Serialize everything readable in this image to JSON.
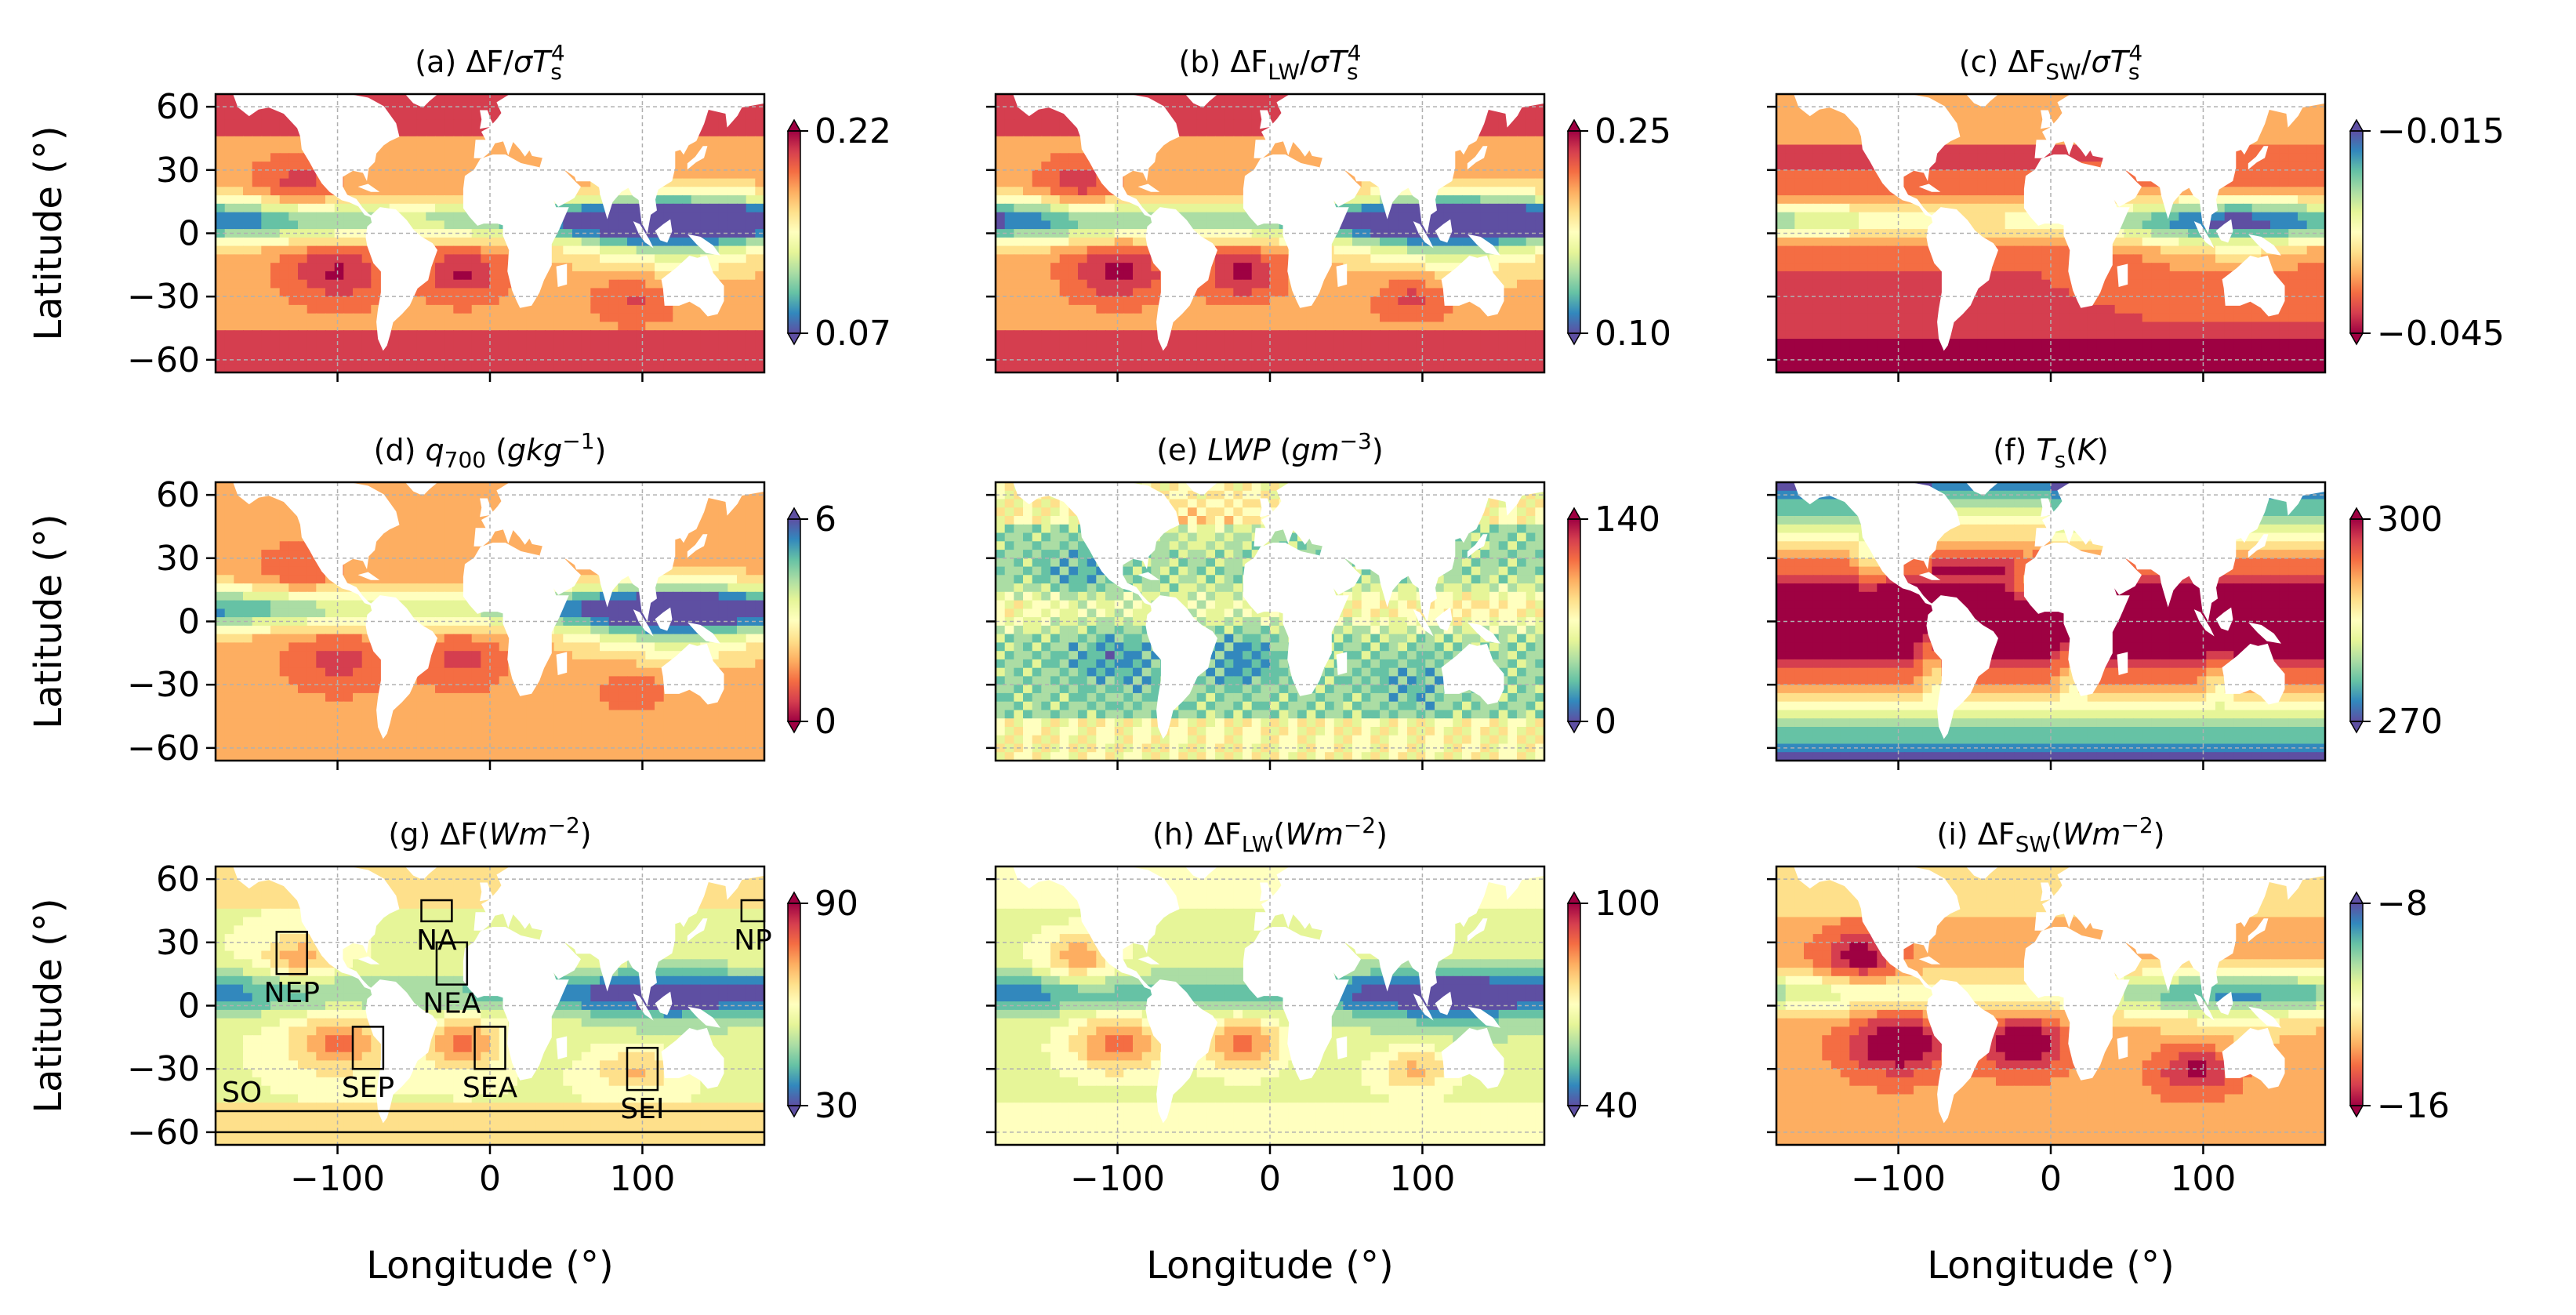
{
  "chart_data": {
    "type": "heatmap",
    "grid": {
      "rows": 3,
      "cols": 3
    },
    "xlabel": "Longitude (°)",
    "ylabel": "Latitude (°)",
    "xlim": [
      -180,
      180
    ],
    "ylim": [
      -66,
      66
    ],
    "xticks": [
      -100,
      0,
      100
    ],
    "yticks": [
      60,
      30,
      0,
      -30,
      -60
    ],
    "xtick_labels": [
      "−100",
      "0",
      "100"
    ],
    "ytick_labels": [
      "60",
      "30",
      "0",
      "−30",
      "−60"
    ],
    "grid_lines": true,
    "colormap": "Spectral",
    "panels": [
      {
        "id": "a",
        "title_parts": [
          "(a) ΔF/",
          "σT",
          "s",
          "4"
        ],
        "colorbar": {
          "min": 0.07,
          "max": 0.22,
          "labels": [
            "0.22",
            "0.07"
          ],
          "reversed": false
        }
      },
      {
        "id": "b",
        "title_parts": [
          "(b) ΔF",
          "LW",
          "/",
          "σT",
          "s",
          "4"
        ],
        "colorbar": {
          "min": 0.1,
          "max": 0.25,
          "labels": [
            "0.25",
            "0.10"
          ],
          "reversed": false
        }
      },
      {
        "id": "c",
        "title_parts": [
          "(c) ΔF",
          "SW",
          "/",
          "σT",
          "s",
          "4"
        ],
        "colorbar": {
          "min": -0.045,
          "max": -0.015,
          "labels": [
            "−0.015",
            "−0.045"
          ],
          "reversed": true
        }
      },
      {
        "id": "d",
        "title_parts": [
          "(d) ",
          "q",
          "700",
          " (",
          "gkg",
          "−1",
          ")"
        ],
        "colorbar": {
          "min": 0,
          "max": 6,
          "labels": [
            "6",
            "0"
          ],
          "reversed": true
        }
      },
      {
        "id": "e",
        "title_parts": [
          "(e) ",
          "LWP",
          " (",
          "gm",
          "−3",
          ")"
        ],
        "colorbar": {
          "min": 0,
          "max": 140,
          "labels": [
            "140",
            "0"
          ],
          "reversed": false
        }
      },
      {
        "id": "f",
        "title_parts": [
          "(f) ",
          "T",
          "s",
          "(",
          "K",
          ")"
        ],
        "colorbar": {
          "min": 270,
          "max": 300,
          "labels": [
            "300",
            "270"
          ],
          "reversed": false
        }
      },
      {
        "id": "g",
        "title_parts": [
          "(g) ΔF(",
          "Wm",
          "−2",
          ")"
        ],
        "colorbar": {
          "min": 30,
          "max": 90,
          "labels": [
            "90",
            "30"
          ],
          "reversed": false
        }
      },
      {
        "id": "h",
        "title_parts": [
          "(h) ΔF",
          "LW",
          "(",
          "Wm",
          "−2",
          ")"
        ],
        "colorbar": {
          "min": 40,
          "max": 100,
          "labels": [
            "100",
            "40"
          ],
          "reversed": false
        }
      },
      {
        "id": "i",
        "title_parts": [
          "(i) ΔF",
          "SW",
          "(",
          "Wm",
          "−2",
          ")"
        ],
        "colorbar": {
          "min": -16,
          "max": -8,
          "labels": [
            "−8",
            "−16"
          ],
          "reversed": true
        }
      }
    ],
    "regions": [
      {
        "name": "NA",
        "lon": [
          -45,
          -25
        ],
        "lat": [
          40,
          50
        ]
      },
      {
        "name": "NEP",
        "lon": [
          -140,
          -120
        ],
        "lat": [
          15,
          35
        ]
      },
      {
        "name": "NEA",
        "lon": [
          -35,
          -15
        ],
        "lat": [
          10,
          30
        ]
      },
      {
        "name": "NP",
        "lon": [
          165,
          180
        ],
        "lat": [
          40,
          50
        ]
      },
      {
        "name": "SEP",
        "lon": [
          -90,
          -70
        ],
        "lat": [
          -30,
          -10
        ]
      },
      {
        "name": "SEA",
        "lon": [
          -10,
          10
        ],
        "lat": [
          -30,
          -10
        ]
      },
      {
        "name": "SEI",
        "lon": [
          90,
          110
        ],
        "lat": [
          -40,
          -20
        ]
      },
      {
        "name": "SO",
        "lon": [
          -180,
          180
        ],
        "lat": [
          -60,
          -50
        ]
      }
    ]
  }
}
